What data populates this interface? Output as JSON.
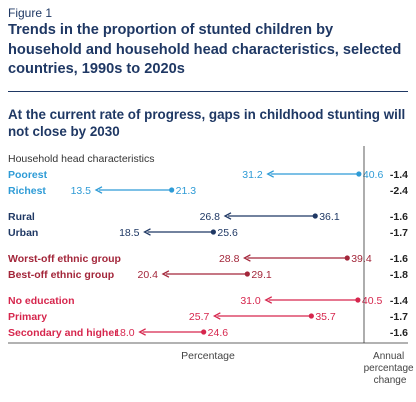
{
  "figure": {
    "label": "Figure 1",
    "title": "Trends in the proportion of stunted children by household and household head characteristics, selected countries, 1990s to 2020s",
    "subtitle": "At the current rate of progress, gaps in childhood stunting will not close by 2030",
    "section_label": "Household head characteristics",
    "x_axis_label": "Percentage",
    "change_label_lines": [
      "Annual",
      "percentage",
      "change"
    ]
  },
  "chart_data": {
    "type": "arrow-dumbbell",
    "title": "Trends in the proportion of stunted children by household and household head characteristics, selected countries, 1990s to 2020s",
    "xlabel": "Percentage",
    "colors": {
      "wealth": "#2e9bd6",
      "location": "#1f3864",
      "ethnicity": "#a3263a",
      "education": "#d6264d"
    },
    "groups": [
      {
        "name": "wealth",
        "rows": [
          {
            "label": "Poorest",
            "from": 40.6,
            "to": 31.2,
            "change": -1.4
          },
          {
            "label": "Richest",
            "from": 21.3,
            "to": 13.5,
            "change": -2.4
          }
        ]
      },
      {
        "name": "location",
        "rows": [
          {
            "label": "Rural",
            "from": 36.1,
            "to": 26.8,
            "change": -1.6
          },
          {
            "label": "Urban",
            "from": 25.6,
            "to": 18.5,
            "change": -1.7
          }
        ]
      },
      {
        "name": "ethnicity",
        "rows": [
          {
            "label": "Worst-off ethnic group",
            "from": 39.4,
            "to": 28.8,
            "change": -1.6
          },
          {
            "label": "Best-off ethnic group",
            "from": 29.1,
            "to": 20.4,
            "change": -1.8
          }
        ]
      },
      {
        "name": "education",
        "rows": [
          {
            "label": "No education",
            "from": 40.5,
            "to": 31.0,
            "change": -1.4
          },
          {
            "label": "Primary",
            "from": 35.7,
            "to": 25.7,
            "change": -1.7
          },
          {
            "label": "Secondary and higher",
            "from": 24.6,
            "to": 18.0,
            "change": -1.6
          }
        ]
      }
    ]
  }
}
